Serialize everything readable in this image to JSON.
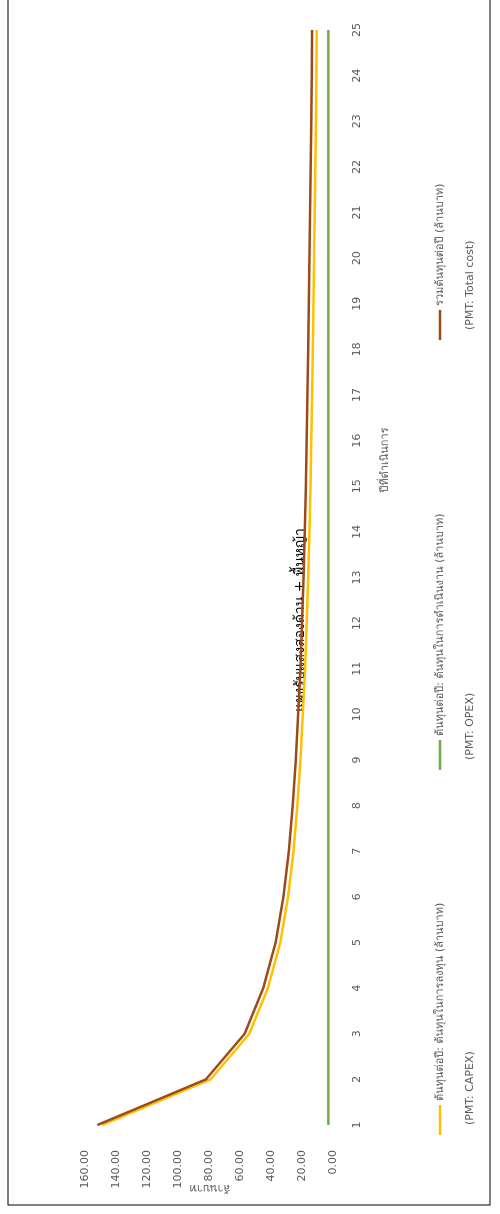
{
  "chart_data": {
    "type": "line",
    "title": "แผงรับแสงสองด้าน + พื้นหญ้า",
    "x_label": "ปีที่ดำเนินการ",
    "y_label": "ล้านบาท",
    "x": [
      1,
      2,
      3,
      4,
      5,
      6,
      7,
      8,
      9,
      10,
      11,
      12,
      13,
      14,
      15,
      16,
      17,
      18,
      19,
      20,
      21,
      22,
      23,
      24,
      25
    ],
    "xlim": [
      1,
      25
    ],
    "xticks": [
      1,
      2,
      3,
      4,
      5,
      6,
      7,
      8,
      9,
      10,
      11,
      12,
      13,
      14,
      15,
      16,
      17,
      18,
      19,
      20,
      21,
      22,
      23,
      24,
      25
    ],
    "ylim": [
      0,
      160
    ],
    "yticks": [
      {
        "value": 0,
        "label": "0.00"
      },
      {
        "value": 20,
        "label": "20.00"
      },
      {
        "value": 40,
        "label": "40.00"
      },
      {
        "value": 60,
        "label": "60.00"
      },
      {
        "value": 80,
        "label": "80.00"
      },
      {
        "value": 100,
        "label": "100.00"
      },
      {
        "value": 120,
        "label": "120.00"
      },
      {
        "value": 140,
        "label": "140.00"
      },
      {
        "value": 160,
        "label": "160.00"
      }
    ],
    "grid": false,
    "legend": "bottom",
    "series": [
      {
        "name": "ต้นทุนต่อปี: ต้นทุนในการลงทุน (ล้านบาท)",
        "subname": "(PMT: CAPEX)",
        "color": "#ffc000",
        "values": [
          149,
          79,
          54,
          42,
          34,
          29,
          25.5,
          23,
          21,
          19.5,
          18,
          17,
          16,
          15.2,
          14.5,
          14,
          13.5,
          13,
          12.6,
          12.2,
          11.8,
          11.4,
          11,
          10.7,
          10.5
        ]
      },
      {
        "name": "ต้นทุนต่อปี: ต้นทุนในการดำเนินงาน (ล้านบาท)",
        "subname": "(PMT: OPEX)",
        "color": "#70ad47",
        "values": [
          3,
          3,
          3,
          3,
          3,
          3,
          3,
          3,
          3,
          3,
          3,
          3,
          3,
          3,
          3,
          3,
          3,
          3,
          3,
          3,
          3,
          3,
          3,
          3,
          3
        ]
      },
      {
        "name": "รวมต้นทุนต่อปี (ล้านบาท)",
        "subname": "(PMT: Total cost)",
        "color": "#9c4a1a",
        "values": [
          152,
          82,
          57,
          45,
          37,
          32,
          28.5,
          26,
          24,
          22.5,
          21,
          20,
          19,
          18.2,
          17.5,
          17,
          16.5,
          16,
          15.6,
          15.2,
          14.8,
          14.4,
          14,
          13.7,
          13.5
        ]
      }
    ]
  }
}
